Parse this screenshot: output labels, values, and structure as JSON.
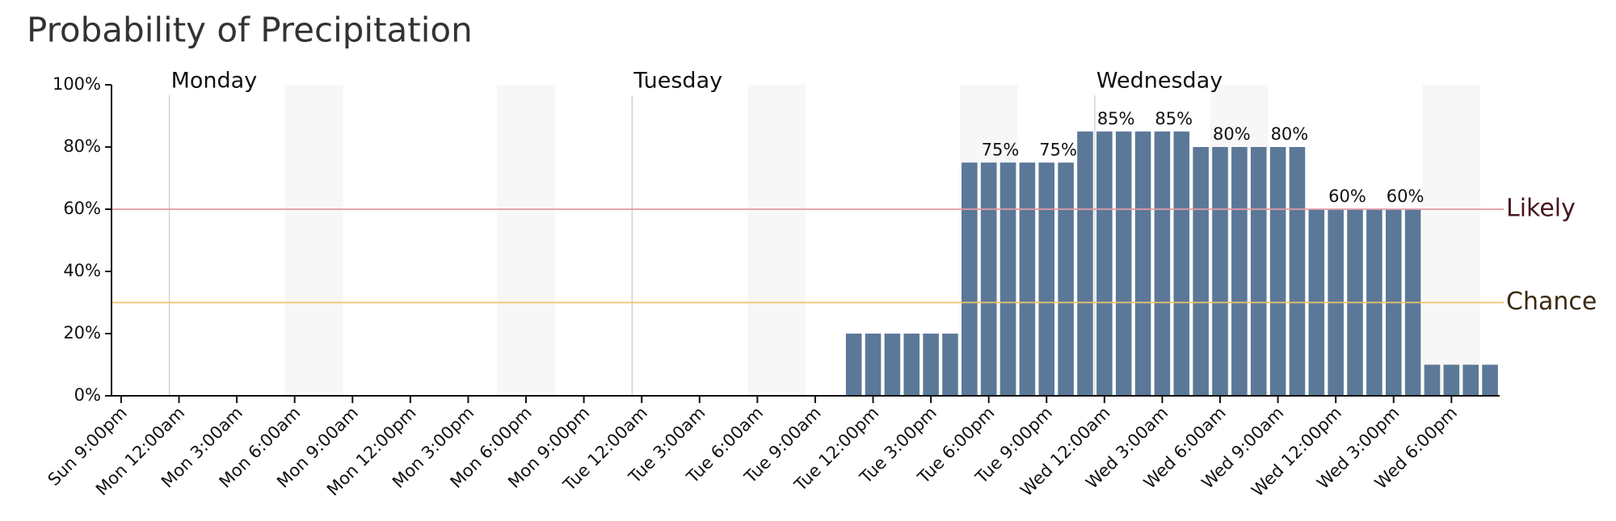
{
  "chart_data": {
    "type": "bar",
    "title": "Probability of Precipitation",
    "categories": [
      "Sun 9:00pm",
      null,
      null,
      "Mon 12:00am",
      null,
      null,
      "Mon 3:00am",
      null,
      null,
      "Mon 6:00am",
      null,
      null,
      "Mon 9:00am",
      null,
      null,
      "Mon 12:00pm",
      null,
      null,
      "Mon 3:00pm",
      null,
      null,
      "Mon 6:00pm",
      null,
      null,
      "Mon 9:00pm",
      null,
      null,
      "Tue 12:00am",
      null,
      null,
      "Tue 3:00am",
      null,
      null,
      "Tue 6:00am",
      null,
      null,
      "Tue 9:00am",
      null,
      null,
      "Tue 12:00pm",
      null,
      null,
      "Tue 3:00pm",
      null,
      null,
      "Tue 6:00pm",
      null,
      null,
      "Tue 9:00pm",
      null,
      null,
      "Wed 12:00am",
      null,
      null,
      "Wed 3:00am",
      null,
      null,
      "Wed 6:00am",
      null,
      null,
      "Wed 9:00am",
      null,
      null,
      "Wed 12:00pm",
      null,
      null,
      "Wed 3:00pm",
      null,
      null,
      "Wed 6:00pm",
      null,
      null
    ],
    "values": [
      0,
      0,
      0,
      0,
      0,
      0,
      0,
      0,
      0,
      0,
      0,
      0,
      0,
      0,
      0,
      0,
      0,
      0,
      0,
      0,
      0,
      0,
      0,
      0,
      0,
      0,
      0,
      0,
      0,
      0,
      0,
      0,
      0,
      0,
      0,
      0,
      0,
      0,
      20,
      20,
      20,
      20,
      20,
      20,
      75,
      75,
      75,
      75,
      75,
      75,
      85,
      85,
      85,
      85,
      85,
      85,
      80,
      80,
      80,
      80,
      80,
      80,
      60,
      60,
      60,
      60,
      60,
      60,
      10,
      10,
      10,
      10
    ],
    "value_labels": [
      null,
      null,
      null,
      null,
      null,
      null,
      null,
      null,
      null,
      null,
      null,
      null,
      null,
      null,
      null,
      null,
      null,
      null,
      null,
      null,
      null,
      null,
      null,
      null,
      null,
      null,
      null,
      null,
      null,
      null,
      null,
      null,
      null,
      null,
      null,
      null,
      null,
      null,
      null,
      null,
      null,
      null,
      null,
      null,
      null,
      "75%",
      null,
      null,
      "75%",
      null,
      null,
      "85%",
      null,
      null,
      "85%",
      null,
      null,
      "80%",
      null,
      null,
      "80%",
      null,
      null,
      "60%",
      null,
      null,
      "60%",
      null,
      null,
      null,
      null,
      null
    ],
    "color": "#5b7899",
    "ylim": [
      0,
      100
    ],
    "yticks": [
      {
        "value": 0,
        "label": "0%"
      },
      {
        "value": 20,
        "label": "20%"
      },
      {
        "value": 40,
        "label": "40%"
      },
      {
        "value": 60,
        "label": "60%"
      },
      {
        "value": 80,
        "label": "80%"
      },
      {
        "value": 100,
        "label": "100%"
      }
    ],
    "reference_lines": [
      {
        "label": "Likely",
        "value": 60,
        "color": "#e39aa3"
      },
      {
        "label": "Chance",
        "value": 30,
        "color": "#efc36e"
      }
    ],
    "day_markers": [
      {
        "label": "Monday",
        "at": "Mon 12:00am"
      },
      {
        "label": "Tuesday",
        "at": "Tue 12:00am"
      },
      {
        "label": "Wednesday",
        "at": "Wed 12:00am"
      }
    ]
  }
}
